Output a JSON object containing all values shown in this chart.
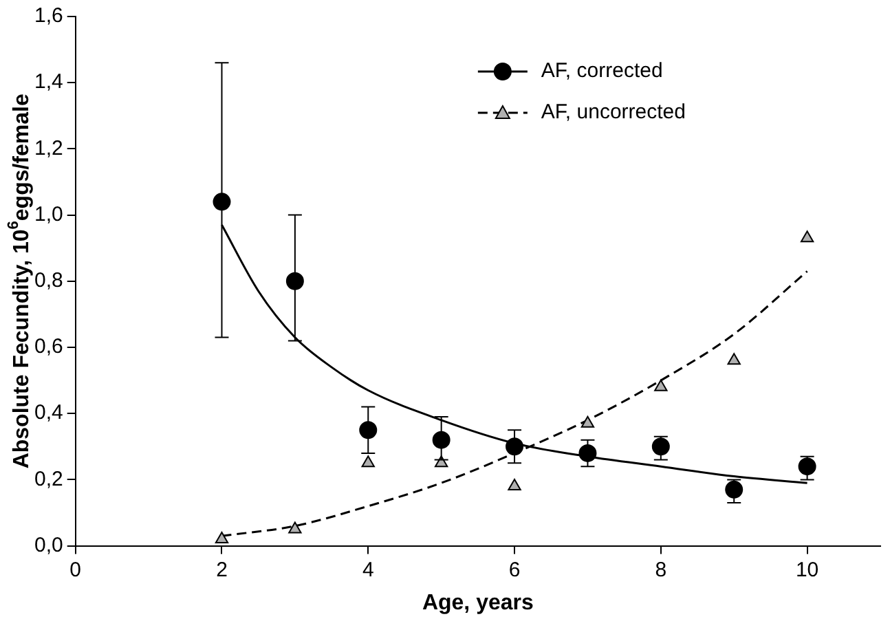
{
  "chart_data": {
    "type": "scatter",
    "xlabel": "Age, years",
    "ylabel": "Absolute Fecundity, 10$^{6}$eggs/female",
    "xlim": [
      0,
      11
    ],
    "xticks": [
      0,
      2,
      4,
      6,
      8,
      10
    ],
    "ylim": [
      0,
      1.6
    ],
    "yticks": [
      {
        "value": 0,
        "label": "0,0"
      },
      {
        "value": 0.2,
        "label": "0,2"
      },
      {
        "value": 0.4,
        "label": "0,4"
      },
      {
        "value": 0.6,
        "label": "0,6"
      },
      {
        "value": 0.8,
        "label": "0,8"
      },
      {
        "value": 1.0,
        "label": "1,0"
      },
      {
        "value": 1.2,
        "label": "1,2"
      },
      {
        "value": 1.4,
        "label": "1,4"
      },
      {
        "value": 1.6,
        "label": "1,6"
      }
    ],
    "grid": false,
    "legend": "top right",
    "series": [
      {
        "name": "AF, corrected",
        "marker": "circle",
        "color": "#000000",
        "x": [
          2,
          3,
          4,
          5,
          6,
          7,
          8,
          9,
          10
        ],
        "values": [
          1.04,
          0.8,
          0.35,
          0.32,
          0.3,
          0.28,
          0.3,
          0.17,
          0.24
        ],
        "errors": [
          [
            0.63,
            1.46
          ],
          [
            0.62,
            1.0
          ],
          [
            0.28,
            0.42
          ],
          [
            0.26,
            0.39
          ],
          [
            0.25,
            0.35
          ],
          [
            0.24,
            0.32
          ],
          [
            0.26,
            0.33
          ],
          [
            0.13,
            0.2
          ],
          [
            0.2,
            0.27
          ]
        ]
      },
      {
        "name": "AF, uncorrected",
        "marker": "triangle",
        "color": "#b0b0b0",
        "x": [
          2,
          3,
          4,
          5,
          6,
          7,
          8,
          9,
          10
        ],
        "values": [
          0.02,
          0.05,
          0.25,
          0.25,
          0.18,
          0.37,
          0.48,
          0.56,
          0.93
        ]
      },
      {
        "type": "line",
        "color": "#000000",
        "line_style": "solid",
        "x": [
          2,
          2.5,
          3,
          3.5,
          4,
          5,
          6,
          7,
          8,
          9,
          10
        ],
        "values": [
          0.97,
          0.77,
          0.63,
          0.54,
          0.47,
          0.38,
          0.31,
          0.27,
          0.24,
          0.21,
          0.19
        ]
      },
      {
        "type": "line",
        "color": "#000000",
        "line_style": "dashed",
        "x": [
          2,
          3,
          4,
          5,
          6,
          7,
          8,
          9,
          10
        ],
        "values": [
          0.03,
          0.06,
          0.12,
          0.19,
          0.28,
          0.38,
          0.5,
          0.64,
          0.83
        ]
      }
    ]
  }
}
